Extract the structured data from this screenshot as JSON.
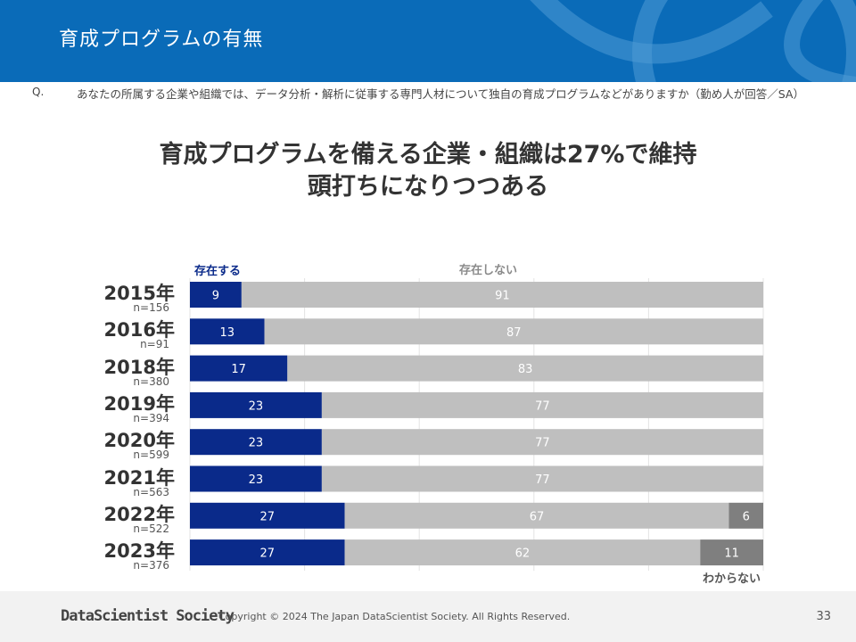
{
  "header": {
    "title": "育成プログラムの有無"
  },
  "question": {
    "label": "Q.",
    "text": "あなたの所属する企業や組織では、データ分析・解析に従事する専門人材について独自の育成プログラムなどがありますか（勤め人が回答／SA）"
  },
  "headline": {
    "line1": "育成プログラムを備える企業・組織は27%で維持",
    "line2": "頭打ちになりつつある"
  },
  "chart_data": {
    "type": "bar",
    "orientation": "horizontal-stacked-100",
    "categories": [
      "2015年",
      "2016年",
      "2018年",
      "2019年",
      "2020年",
      "2021年",
      "2022年",
      "2023年"
    ],
    "sample_sizes": [
      "n=156",
      "n=91",
      "n=380",
      "n=394",
      "n=599",
      "n=563",
      "n=522",
      "n=376"
    ],
    "series": [
      {
        "name": "存在する",
        "color": "#0a2a8a",
        "values": [
          9,
          13,
          17,
          23,
          23,
          23,
          27,
          27
        ]
      },
      {
        "name": "存在しない",
        "color": "#bfbfbf",
        "values": [
          91,
          87,
          83,
          77,
          77,
          77,
          67,
          62
        ]
      },
      {
        "name": "わからない",
        "color": "#7f7f7f",
        "values": [
          null,
          null,
          null,
          null,
          null,
          null,
          6,
          11
        ]
      }
    ],
    "xlim": [
      0,
      100
    ],
    "grid": true
  },
  "footer": {
    "logo": "DataScientist Society",
    "copyright": "Copyright © 2024  The Japan DataScientist Society. All Rights Reserved.",
    "page": "33"
  }
}
